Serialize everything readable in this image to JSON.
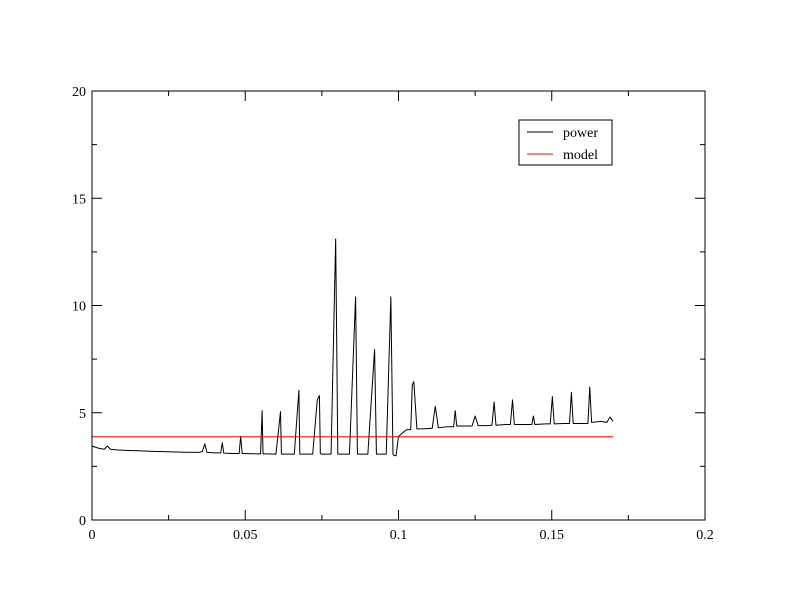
{
  "chart_data": {
    "type": "line",
    "title": "",
    "xlabel": "",
    "ylabel": "",
    "xlim": [
      0,
      0.2
    ],
    "ylim": [
      0,
      20
    ],
    "x_ticks": [
      0,
      0.05,
      0.1,
      0.15,
      0.2
    ],
    "x_tick_labels": [
      "0",
      "0.05",
      "0.1",
      "0.15",
      "0.2"
    ],
    "y_ticks": [
      0,
      5,
      10,
      15,
      20
    ],
    "y_tick_labels": [
      "0",
      "5",
      "10",
      "15",
      "20"
    ],
    "grid": false,
    "legend_position": "top-right",
    "colors": {
      "power": "#000000",
      "model": "#ff0000",
      "axes": "#000000"
    },
    "series": [
      {
        "name": "power",
        "color": "#000000",
        "x": [
          0.0,
          0.002,
          0.004,
          0.005,
          0.006,
          0.008,
          0.012,
          0.016,
          0.02,
          0.025,
          0.03,
          0.035,
          0.036,
          0.0368,
          0.0375,
          0.04,
          0.042,
          0.0425,
          0.043,
          0.046,
          0.048,
          0.0485,
          0.049,
          0.0495,
          0.052,
          0.055,
          0.0555,
          0.0558,
          0.0562,
          0.06,
          0.0615,
          0.0618,
          0.0622,
          0.066,
          0.0675,
          0.0678,
          0.0682,
          0.072,
          0.0735,
          0.0742,
          0.0745,
          0.0748,
          0.078,
          0.0795,
          0.0802,
          0.0806,
          0.084,
          0.086,
          0.0866,
          0.087,
          0.09,
          0.0922,
          0.0928,
          0.0932,
          0.096,
          0.0975,
          0.0982,
          0.0986,
          0.0992,
          0.1,
          0.1025,
          0.104,
          0.1045,
          0.105,
          0.106,
          0.108,
          0.111,
          0.112,
          0.113,
          0.116,
          0.118,
          0.1185,
          0.119,
          0.122,
          0.124,
          0.125,
          0.126,
          0.129,
          0.1305,
          0.1312,
          0.1318,
          0.135,
          0.1365,
          0.1372,
          0.1378,
          0.141,
          0.1435,
          0.144,
          0.1445,
          0.148,
          0.1495,
          0.1502,
          0.1508,
          0.154,
          0.1558,
          0.1564,
          0.157,
          0.16,
          0.1618,
          0.1624,
          0.163,
          0.166,
          0.168,
          0.169,
          0.17
        ],
        "y": [
          3.45,
          3.35,
          3.3,
          3.45,
          3.3,
          3.27,
          3.24,
          3.22,
          3.2,
          3.18,
          3.16,
          3.15,
          3.2,
          3.55,
          3.15,
          3.13,
          3.13,
          3.6,
          3.12,
          3.1,
          3.1,
          3.9,
          3.1,
          3.1,
          3.09,
          3.08,
          5.1,
          3.08,
          3.08,
          3.07,
          5.05,
          3.07,
          3.07,
          3.07,
          6.05,
          3.07,
          3.07,
          3.07,
          5.6,
          5.8,
          3.1,
          3.07,
          3.07,
          13.1,
          3.07,
          3.07,
          3.07,
          10.4,
          3.07,
          3.07,
          3.07,
          7.95,
          3.07,
          3.07,
          3.07,
          10.4,
          3.07,
          3.0,
          3.0,
          3.9,
          4.2,
          4.22,
          6.3,
          6.45,
          4.25,
          4.25,
          4.28,
          5.3,
          4.3,
          4.35,
          4.35,
          5.1,
          4.38,
          4.38,
          4.38,
          4.85,
          4.4,
          4.4,
          4.42,
          5.5,
          4.42,
          4.45,
          4.45,
          5.6,
          4.45,
          4.45,
          4.45,
          4.85,
          4.45,
          4.48,
          4.48,
          5.75,
          4.48,
          4.5,
          4.5,
          5.95,
          4.5,
          4.5,
          4.5,
          6.2,
          4.55,
          4.6,
          4.55,
          4.8,
          4.6
        ]
      },
      {
        "name": "model",
        "color": "#ff0000",
        "x": [
          0.0,
          0.17
        ],
        "y": [
          3.88,
          3.88
        ]
      }
    ]
  }
}
